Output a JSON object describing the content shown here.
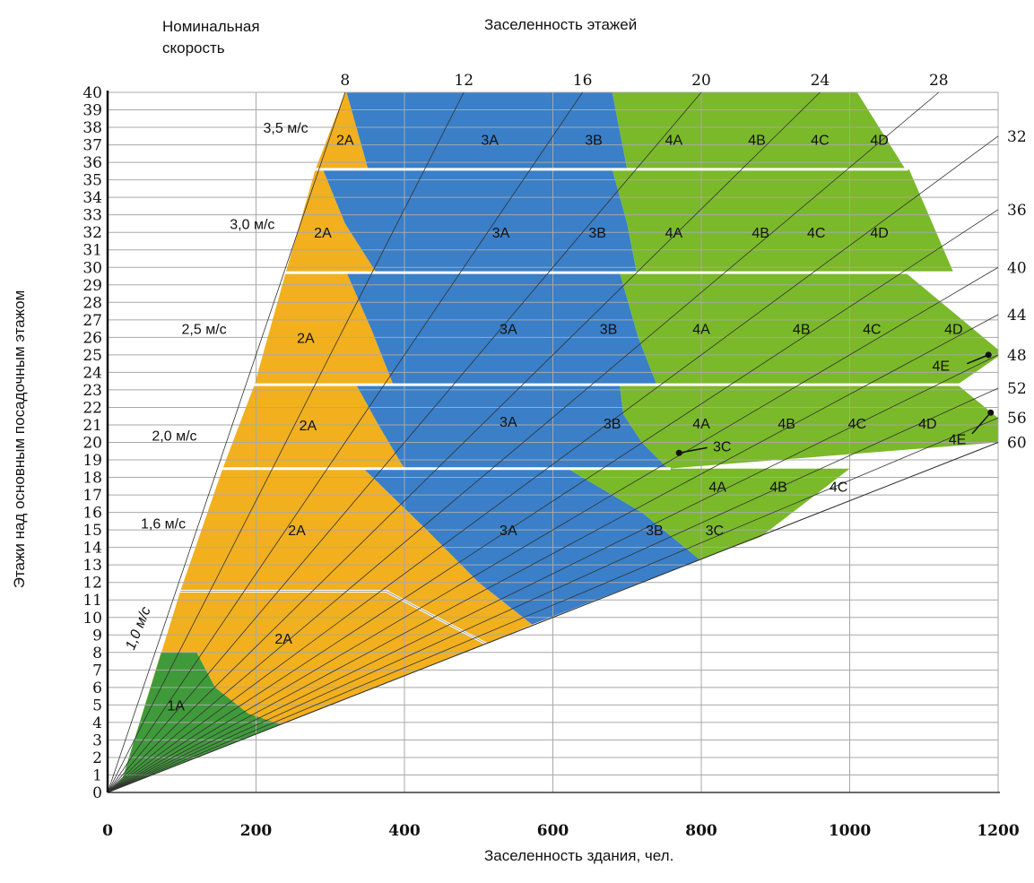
{
  "chart_data": {
    "type": "area",
    "speed_header": [
      "Номинальная",
      "скорость"
    ],
    "occupancy_header": "Заселенность этажей",
    "xlabel": "Заселенность здания, чел.",
    "ylabel": "Этажи над основным посадочным этажом",
    "xlim": [
      0,
      1200
    ],
    "ylim": [
      0,
      40
    ],
    "x_ticks": [
      0,
      200,
      400,
      600,
      800,
      1000,
      1200
    ],
    "y_ticks": [
      0,
      1,
      2,
      3,
      4,
      5,
      6,
      7,
      8,
      9,
      10,
      11,
      12,
      13,
      14,
      15,
      16,
      17,
      18,
      19,
      20,
      21,
      22,
      23,
      24,
      25,
      26,
      27,
      28,
      29,
      30,
      31,
      32,
      33,
      34,
      35,
      36,
      37,
      38,
      39,
      40
    ],
    "floor_occupancy_rays": [
      {
        "label": "8",
        "x": 320,
        "y": 40
      },
      {
        "label": "12",
        "x": 480,
        "y": 40
      },
      {
        "label": "16",
        "x": 640,
        "y": 40
      },
      {
        "label": "20",
        "x": 800,
        "y": 40
      },
      {
        "label": "24",
        "x": 960,
        "y": 40
      },
      {
        "label": "28",
        "x": 1120,
        "y": 40
      },
      {
        "label": "32",
        "x": 1200,
        "y": 37.5
      },
      {
        "label": "36",
        "x": 1200,
        "y": 33.3
      },
      {
        "label": "40",
        "x": 1200,
        "y": 30
      },
      {
        "label": "44",
        "x": 1200,
        "y": 27.3
      },
      {
        "label": "48",
        "x": 1200,
        "y": 25
      },
      {
        "label": "52",
        "x": 1200,
        "y": 23.1
      },
      {
        "label": "56",
        "x": 1200,
        "y": 21.4
      },
      {
        "label": "60",
        "x": 1200,
        "y": 20
      }
    ],
    "colors": {
      "class1": "#3f9a3a",
      "class2": "#f2b01e",
      "class3": "#3a7fc8",
      "class4": "#7ab929"
    },
    "speed_bands": [
      {
        "speed": "1,0 м/с",
        "floor_min": 0,
        "floor_max": 11.5,
        "polygons": [
          {
            "cls": "class1",
            "pts": [
              [
                0,
                0
              ],
              [
                20,
                0.8
              ],
              [
                72,
                8
              ],
              [
                120,
                8
              ],
              [
                145,
                6
              ],
              [
                190,
                4.5
              ],
              [
                233,
                3.9
              ]
            ]
          },
          {
            "cls": "class2",
            "pts": [
              [
                20,
                0.8
              ],
              [
                72,
                8
              ],
              [
                120,
                8
              ],
              [
                145,
                6
              ],
              [
                190,
                4.5
              ],
              [
                233,
                3.9
              ],
              [
                510,
                8.5
              ],
              [
                375,
                11.5
              ],
              [
                98,
                11.5
              ]
            ]
          }
        ],
        "labels": [
          {
            "text": "1A",
            "x": 92,
            "y": 5
          },
          {
            "text": "2A",
            "x": 237,
            "y": 8.8
          }
        ]
      },
      {
        "speed": "1,6 м/с",
        "floor_min": 11.5,
        "floor_max": 18.5,
        "polygons": [
          {
            "cls": "class2",
            "pts": [
              [
                98,
                11.5
              ],
              [
                375,
                11.5
              ],
              [
                510,
                8.5
              ],
              [
                572,
                9.6
              ],
              [
                500,
                12
              ],
              [
                430,
                15
              ],
              [
                345,
                18.5
              ],
              [
                155,
                18.5
              ]
            ]
          },
          {
            "cls": "class3",
            "pts": [
              [
                345,
                18.5
              ],
              [
                430,
                15
              ],
              [
                500,
                12
              ],
              [
                572,
                9.6
              ],
              [
                798,
                13.3
              ],
              [
                720,
                16
              ],
              [
                620,
                18.5
              ]
            ]
          },
          {
            "cls": "class4",
            "pts": [
              [
                620,
                18.5
              ],
              [
                720,
                16
              ],
              [
                798,
                13.3
              ],
              [
                880,
                14.6
              ],
              [
                1000,
                18.5
              ]
            ]
          }
        ],
        "labels": [
          {
            "text": "2A",
            "x": 255,
            "y": 15
          },
          {
            "text": "3A",
            "x": 540,
            "y": 15
          },
          {
            "text": "3B",
            "x": 737,
            "y": 15
          },
          {
            "text": "3C",
            "x": 818,
            "y": 15
          },
          {
            "text": "4A",
            "x": 822,
            "y": 17.5
          },
          {
            "text": "4B",
            "x": 904,
            "y": 17.5
          },
          {
            "text": "4C",
            "x": 985,
            "y": 17.5
          }
        ]
      },
      {
        "speed": "2,0 м/с",
        "floor_min": 18.5,
        "floor_max": 23.3,
        "polygons": [
          {
            "cls": "class2",
            "pts": [
              [
                155,
                18.5
              ],
              [
                400,
                18.5
              ],
              [
                365,
                21
              ],
              [
                335,
                23.3
              ],
              [
                198,
                23.3
              ]
            ]
          },
          {
            "cls": "class3",
            "pts": [
              [
                400,
                18.5
              ],
              [
                755,
                18.5
              ],
              [
                720,
                20
              ],
              [
                695,
                21.6
              ],
              [
                690,
                23.3
              ],
              [
                335,
                23.3
              ],
              [
                365,
                21
              ]
            ]
          },
          {
            "cls": "class4",
            "pts": [
              [
                755,
                18.5
              ],
              [
                1200,
                20
              ],
              [
                1200,
                21.4
              ],
              [
                1145,
                23.3
              ],
              [
                690,
                23.3
              ],
              [
                695,
                21.6
              ],
              [
                720,
                20
              ]
            ]
          }
        ],
        "labels": [
          {
            "text": "2A",
            "x": 270,
            "y": 21
          },
          {
            "text": "3A",
            "x": 540,
            "y": 21.2
          },
          {
            "text": "3B",
            "x": 680,
            "y": 21.1
          },
          {
            "text": "4A",
            "x": 800,
            "y": 21.1
          },
          {
            "text": "4B",
            "x": 915,
            "y": 21.1
          },
          {
            "text": "4C",
            "x": 1010,
            "y": 21.1
          },
          {
            "text": "4D",
            "x": 1105,
            "y": 21.1
          },
          {
            "text": "3C",
            "x": 828,
            "y": 19.8
          },
          {
            "text": "4E",
            "x": 1145,
            "y": 20.2
          }
        ]
      },
      {
        "speed": "2,5 м/с",
        "floor_min": 23.3,
        "floor_max": 29.7,
        "polygons": [
          {
            "cls": "class2",
            "pts": [
              [
                198,
                23.3
              ],
              [
                385,
                23.3
              ],
              [
                355,
                26.5
              ],
              [
                322,
                29.7
              ],
              [
                240,
                29.7
              ]
            ]
          },
          {
            "cls": "class3",
            "pts": [
              [
                385,
                23.3
              ],
              [
                740,
                23.3
              ],
              [
                715,
                26
              ],
              [
                690,
                29.7
              ],
              [
                322,
                29.7
              ],
              [
                355,
                26.5
              ]
            ]
          },
          {
            "cls": "class4",
            "pts": [
              [
                740,
                23.3
              ],
              [
                1145,
                23.3
              ],
              [
                1200,
                24.9
              ],
              [
                1200,
                25.3
              ],
              [
                1075,
                29.7
              ],
              [
                690,
                29.7
              ],
              [
                715,
                26
              ]
            ]
          }
        ],
        "labels": [
          {
            "text": "2A",
            "x": 267,
            "y": 26
          },
          {
            "text": "3A",
            "x": 540,
            "y": 26.5
          },
          {
            "text": "3B",
            "x": 675,
            "y": 26.5
          },
          {
            "text": "4A",
            "x": 800,
            "y": 26.5
          },
          {
            "text": "4B",
            "x": 935,
            "y": 26.5
          },
          {
            "text": "4C",
            "x": 1030,
            "y": 26.5
          },
          {
            "text": "4D",
            "x": 1140,
            "y": 26.5
          },
          {
            "text": "4E",
            "x": 1123,
            "y": 24.4
          }
        ]
      },
      {
        "speed": "3,0 м/с",
        "floor_min": 29.7,
        "floor_max": 35.6,
        "polygons": [
          {
            "cls": "class2",
            "pts": [
              [
                240,
                29.7
              ],
              [
                362,
                29.7
              ],
              [
                320,
                32.5
              ],
              [
                290,
                35.6
              ],
              [
                280,
                35.6
              ]
            ]
          },
          {
            "cls": "class3",
            "pts": [
              [
                362,
                29.7
              ],
              [
                713,
                29.7
              ],
              [
                700,
                32.5
              ],
              [
                680,
                35.6
              ],
              [
                290,
                35.6
              ],
              [
                320,
                32.5
              ]
            ]
          },
          {
            "cls": "class4",
            "pts": [
              [
                713,
                29.7
              ],
              [
                1140,
                29.7
              ],
              [
                1080,
                35.6
              ],
              [
                680,
                35.6
              ],
              [
                700,
                32.5
              ]
            ]
          }
        ],
        "labels": [
          {
            "text": "2A",
            "x": 290,
            "y": 32
          },
          {
            "text": "3A",
            "x": 530,
            "y": 32
          },
          {
            "text": "3B",
            "x": 660,
            "y": 32
          },
          {
            "text": "4A",
            "x": 763,
            "y": 32
          },
          {
            "text": "4B",
            "x": 880,
            "y": 32
          },
          {
            "text": "4C",
            "x": 955,
            "y": 32
          },
          {
            "text": "4D",
            "x": 1040,
            "y": 32
          }
        ]
      },
      {
        "speed": "3,5 м/с",
        "floor_min": 35.6,
        "floor_max": 40,
        "polygons": [
          {
            "cls": "class2",
            "pts": [
              [
                280,
                35.6
              ],
              [
                351,
                35.6
              ],
              [
                322,
                40
              ],
              [
                320,
                40
              ]
            ]
          },
          {
            "cls": "class3",
            "pts": [
              [
                351,
                35.6
              ],
              [
                700,
                35.6
              ],
              [
                680,
                40
              ],
              [
                322,
                40
              ]
            ]
          },
          {
            "cls": "class4",
            "pts": [
              [
                700,
                35.6
              ],
              [
                1075,
                35.6
              ],
              [
                1010,
                40
              ],
              [
                680,
                40
              ]
            ]
          }
        ],
        "labels": [
          {
            "text": "2A",
            "x": 320,
            "y": 37.3
          },
          {
            "text": "3A",
            "x": 515,
            "y": 37.3
          },
          {
            "text": "3B",
            "x": 655,
            "y": 37.3
          },
          {
            "text": "4A",
            "x": 763,
            "y": 37.3
          },
          {
            "text": "4B",
            "x": 875,
            "y": 37.3
          },
          {
            "text": "4C",
            "x": 960,
            "y": 37.3
          },
          {
            "text": "4D",
            "x": 1040,
            "y": 37.3
          }
        ]
      }
    ],
    "speed_label_positions": [
      {
        "speed": "3,5 м/с",
        "x": 240,
        "y": 38
      },
      {
        "speed": "3,0 м/с",
        "x": 195,
        "y": 32.5
      },
      {
        "speed": "2,5 м/с",
        "x": 130,
        "y": 26.5
      },
      {
        "speed": "2,0 м/с",
        "x": 90,
        "y": 20.4
      },
      {
        "speed": "1,6 м/с",
        "x": 75,
        "y": 15.4
      },
      {
        "speed": "1,0 м/с",
        "x": 40,
        "y": 9.4
      }
    ],
    "lower_boundary": [
      [
        0,
        0
      ],
      [
        1200,
        20
      ]
    ]
  }
}
